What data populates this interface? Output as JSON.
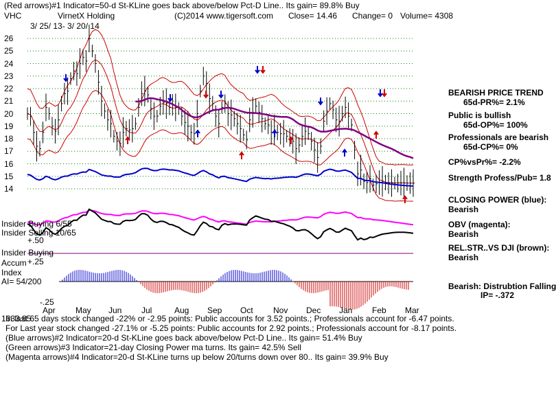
{
  "header": {
    "line1": "(Red arrows)#1 Indicator=50-d St-KLine goes back above/below Pct-D Line.. Its gain= 89.8% Buy",
    "ticker": "VHC",
    "company": "VirnetX Holding",
    "source": "(C)2014 www.tigersoft.com",
    "close": "Close=  14.46",
    "change": "Change= 0",
    "volume": "Volume= 4308",
    "date_range": "3/ 25/ 13- 3/ 20/ 14"
  },
  "left_labels": {
    "insider_buying_pct": "Insider Buying  6/55",
    "insider_selling_pct": "Insider Selling 10/65",
    "insider_buying": "Insider Buying",
    "accum_index": "Accum Index",
    "ai": "AI= 54/200",
    "plus50": "+.50",
    "plus25": "+.25",
    "minus25": "-.25"
  },
  "right_panel": {
    "trend_title": "BEARISH PRICE TREND",
    "pr": "65d-PR%= 2.1%",
    "public": "Public is bullish",
    "op": "65d-OP%= 100%",
    "professionals": "Professionals are bearish",
    "cp": "65d-CP%= 0%",
    "cpvspr": "CP%vsPr%= -2.2%",
    "strength": "Strength Profess/Pub= 1.8",
    "closing_power": "CLOSING POWER (blue):",
    "closing_power_val": "Bearish",
    "obv": "OBV (magenta):",
    "obv_val": "Bearish",
    "relstr": "REL.STR..VS DJI (brown):",
    "relstr_val": "Bearish",
    "distribution": "Bearish: Distrubtion Falling",
    "ip": "IP= -.372"
  },
  "footer": {
    "line1": "In last 65 days stock changed -22% or -2.95 points:  Public accounts for  3.52 points.;  Professionals account for -6.47 points.",
    "overlap": "1633.85",
    "line2": "For Last year stock changed -27.1% or -5.25 points:  Public accounts for  2.92 points.;  Professionals account for -8.17 points.",
    "line3": "(Blue arrows)#2 Indicator=20-d St-KLine goes back above/below Pct-D Line.. Its gain= 51.4% Buy",
    "line4": "(Green arrows)#3 Indicator=21-day Closing Power ma turns. Its gain= 42.5% Sell",
    "line5": "(Magenta arrows)#4 Indicator=20-d St-KLine turns up below 20/turns down over 80.. Its gain= 39.9% Buy"
  },
  "colors": {
    "price": "#000000",
    "bands": "#cc0000",
    "ma": "#800080",
    "closing_power": "#0000cc",
    "obv": "#ff00ff",
    "relstr": "#000000",
    "accum_pos": "#0000cc",
    "accum_neg": "#cc0000",
    "grid": "#008000"
  },
  "chart_data": {
    "type": "line",
    "ylim": [
      13.5,
      27
    ],
    "y_ticks": [
      14,
      15,
      16,
      17,
      18,
      19,
      20,
      21,
      22,
      23,
      24,
      25,
      26
    ],
    "x_ticks": [
      "Apr",
      "May",
      "Jun",
      "Jul",
      "Aug",
      "Sep",
      "Oct",
      "Nov",
      "Dec",
      "Jan",
      "Feb",
      "Mar"
    ],
    "price_series": {
      "x": [
        0,
        2,
        4,
        6,
        8,
        10,
        12,
        14,
        16,
        18,
        20,
        22,
        24,
        26,
        28,
        30,
        32,
        34,
        36,
        38,
        40,
        42,
        44,
        46,
        48,
        50,
        52,
        54,
        56,
        58,
        60,
        62,
        64,
        66,
        68,
        70,
        72,
        74,
        76,
        78,
        80,
        82,
        84,
        86,
        88,
        90,
        92,
        94,
        96,
        98,
        100,
        102,
        104,
        106,
        108,
        110,
        112,
        114,
        116,
        118,
        120,
        122,
        124,
        126,
        128,
        130,
        132,
        134,
        136,
        138,
        140,
        142,
        144,
        146,
        148,
        150,
        152,
        154,
        156,
        158,
        160,
        162,
        164,
        166,
        168,
        170,
        172,
        174,
        176,
        178,
        180,
        182,
        184,
        186,
        188,
        190,
        192,
        194,
        196,
        198,
        200,
        202,
        204,
        206,
        208,
        210,
        212,
        214,
        216,
        218,
        220,
        222,
        224,
        226,
        228,
        230,
        232,
        234,
        236,
        238,
        240,
        242,
        244,
        246,
        248,
        250
      ],
      "close": [
        20,
        19.8,
        18.5,
        17.4,
        17.2,
        18.5,
        20.5,
        20,
        19,
        18.6,
        19.5,
        20.8,
        21.6,
        21.8,
        22.8,
        23.4,
        23.2,
        24,
        24.5,
        24.2,
        26,
        25,
        24,
        22.5,
        21,
        20.2,
        19.5,
        19.2,
        18.2,
        17.8,
        17.6,
        18.5,
        18.8,
        18.7,
        18.8,
        19.2,
        20.5,
        21.6,
        21.8,
        21.5,
        20.4,
        19.8,
        19.8,
        20.6,
        20.9,
        20.8,
        20.5,
        20.7,
        20.5,
        20.4,
        19.8,
        19.3,
        19,
        18.5,
        18.4,
        20,
        21.8,
        23,
        22.4,
        21.2,
        20.8,
        19.8,
        19.2,
        20.5,
        20.8,
        20,
        19.9,
        19.6,
        19.2,
        18.8,
        18.3,
        17.9,
        19.5,
        20.1,
        20.6,
        20.1,
        19.6,
        19.2,
        19.1,
        18.5,
        18.7,
        18.5,
        18.4,
        18.4,
        18.2,
        18.1,
        17.8,
        17.2,
        17.5,
        18.2,
        18.6,
        18.4,
        17.8,
        17.1,
        16.5,
        17.4,
        19.4,
        20.2,
        20.8,
        20.3,
        19.5,
        19.4,
        20,
        20.5,
        19.8,
        19.1,
        17.1,
        15.2,
        15.5,
        14.6,
        14.5,
        14.8,
        14.3,
        14.4,
        14.5,
        14.6,
        14.5,
        14.46,
        14.46,
        14.46,
        14.46,
        14.46,
        14.46,
        14.46,
        14.46,
        14.46
      ]
    },
    "annotations": [
      "#1 red arrows",
      "#2 blue arrows",
      "#3 green arrows",
      "#4 magenta arrows"
    ]
  }
}
